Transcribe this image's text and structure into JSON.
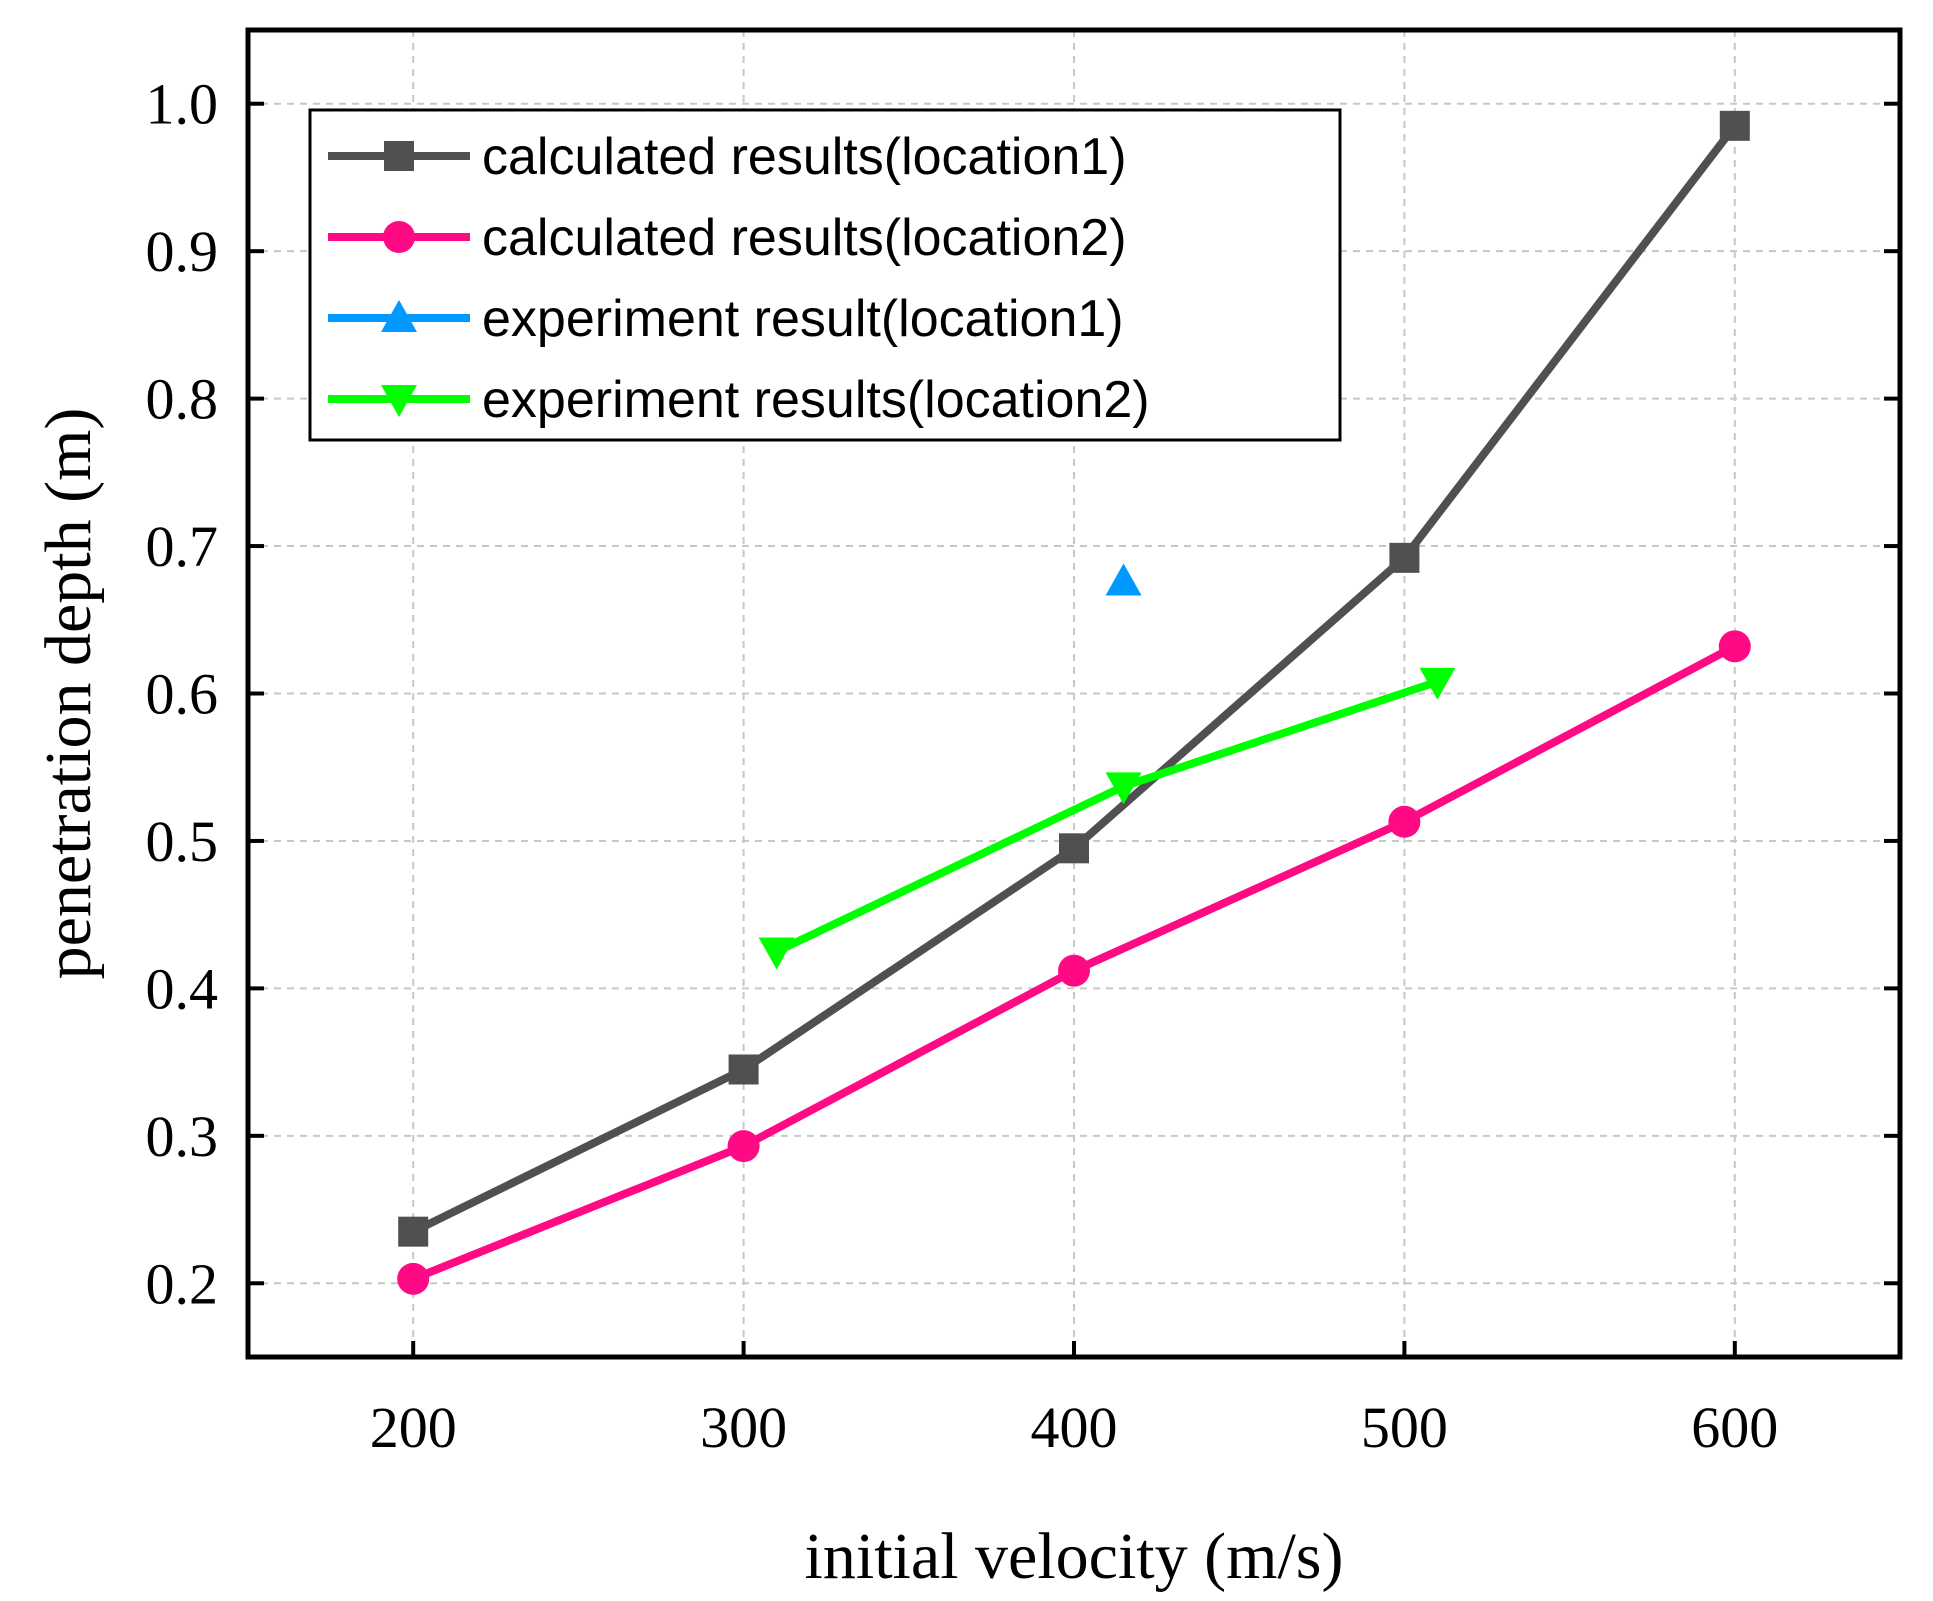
{
  "chart_data": {
    "type": "line",
    "xlabel": "initial velocity (m/s)",
    "ylabel": "penetration depth (m)",
    "xlim": [
      150,
      650
    ],
    "ylim": [
      0.15,
      1.05
    ],
    "xticks": [
      200,
      300,
      400,
      500,
      600
    ],
    "yticks": [
      0.2,
      0.3,
      0.4,
      0.5,
      0.6,
      0.7,
      0.8,
      0.9,
      1.0
    ],
    "xtick_labels": [
      "200",
      "300",
      "400",
      "500",
      "600"
    ],
    "ytick_labels": [
      "0.2",
      "0.3",
      "0.4",
      "0.5",
      "0.6",
      "0.7",
      "0.8",
      "0.9",
      "1.0"
    ],
    "grid": true,
    "legend_position": "top-left",
    "series": [
      {
        "name": "calculated results(location1)",
        "color": "#505050",
        "marker": "square",
        "x": [
          200,
          300,
          400,
          500,
          600
        ],
        "y": [
          0.235,
          0.345,
          0.495,
          0.692,
          0.985
        ]
      },
      {
        "name": "calculated results(location2)",
        "color": "#ff0a84",
        "marker": "circle",
        "x": [
          200,
          300,
          400,
          500,
          600
        ],
        "y": [
          0.203,
          0.293,
          0.412,
          0.513,
          0.632
        ]
      },
      {
        "name": "experiment result(location1)",
        "color": "#0099ff",
        "marker": "triangle-up",
        "x": [
          415
        ],
        "y": [
          0.676
        ]
      },
      {
        "name": "experiment results(location2)",
        "color": "#00ff00",
        "marker": "triangle-down",
        "x": [
          310,
          415,
          510
        ],
        "y": [
          0.425,
          0.537,
          0.608
        ]
      }
    ]
  }
}
